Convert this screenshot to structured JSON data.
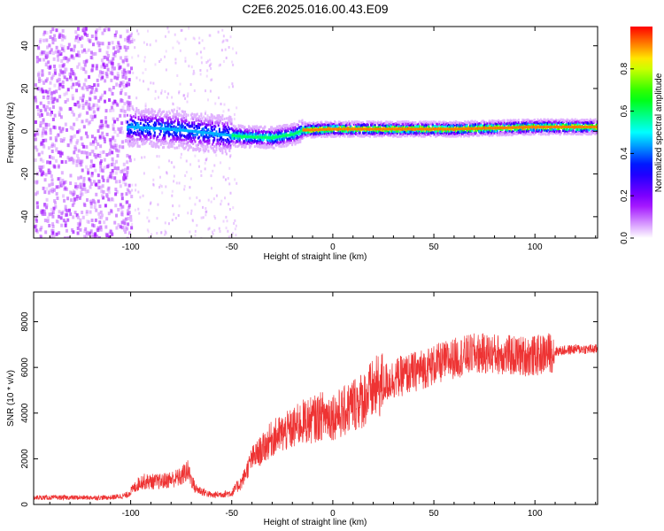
{
  "title": "C2E6.2025.016.00.43.E09",
  "chart_data": [
    {
      "type": "heatmap",
      "xlabel": "Height of straight line (km)",
      "ylabel": "Frequency (Hz)",
      "xlim": [
        -148,
        131
      ],
      "ylim": [
        -50,
        49
      ],
      "xticks": [
        -100,
        -50,
        0,
        50,
        100
      ],
      "yticks": [
        -40,
        -20,
        0,
        20,
        40
      ],
      "colorbar": {
        "label": "Normalized spectral amplitude",
        "range": [
          0,
          1
        ],
        "ticks": [
          0.0,
          0.2,
          0.4,
          0.6,
          0.8
        ],
        "colors": [
          "#ffffff",
          "#9b00ff",
          "#0000ff",
          "#00ffff",
          "#00ff00",
          "#ffff00",
          "#ff0000"
        ]
      },
      "ridge": {
        "points": [
          [
            -148,
            0
          ],
          [
            -100,
            2
          ],
          [
            -80,
            1
          ],
          [
            -60,
            -1
          ],
          [
            -45,
            -2.5
          ],
          [
            -30,
            -3
          ],
          [
            -20,
            -1.5
          ],
          [
            -15,
            0.5
          ],
          [
            0,
            1
          ],
          [
            20,
            1
          ],
          [
            40,
            1
          ],
          [
            60,
            1
          ],
          [
            80,
            1.5
          ],
          [
            100,
            2
          ],
          [
            131,
            2
          ]
        ]
      }
    },
    {
      "type": "line",
      "xlabel": "Height of straight line (km)",
      "ylabel": "SNR (10 * v/v)",
      "xlim": [
        -148,
        131
      ],
      "ylim": [
        0,
        9300
      ],
      "xticks": [
        -100,
        -50,
        0,
        50,
        100
      ],
      "yticks": [
        0,
        2000,
        4000,
        6000,
        8000
      ],
      "line_color": "#ee3333",
      "envelope": [
        [
          -148,
          300
        ],
        [
          -110,
          300
        ],
        [
          -102,
          400
        ],
        [
          -95,
          1000
        ],
        [
          -85,
          1000
        ],
        [
          -75,
          1200
        ],
        [
          -72,
          1500
        ],
        [
          -68,
          700
        ],
        [
          -60,
          400
        ],
        [
          -50,
          500
        ],
        [
          -45,
          1000
        ],
        [
          -40,
          2000
        ],
        [
          -35,
          2400
        ],
        [
          -30,
          2900
        ],
        [
          -25,
          3100
        ],
        [
          -20,
          3300
        ],
        [
          -15,
          3600
        ],
        [
          -10,
          3700
        ],
        [
          -5,
          3900
        ],
        [
          0,
          3900
        ],
        [
          5,
          4000
        ],
        [
          10,
          4400
        ],
        [
          15,
          4600
        ],
        [
          20,
          5000
        ],
        [
          25,
          5300
        ],
        [
          30,
          5500
        ],
        [
          40,
          5800
        ],
        [
          50,
          6100
        ],
        [
          60,
          6400
        ],
        [
          70,
          6600
        ],
        [
          80,
          6600
        ],
        [
          90,
          6500
        ],
        [
          100,
          6500
        ],
        [
          110,
          6700
        ],
        [
          120,
          6800
        ],
        [
          131,
          6800
        ]
      ]
    }
  ]
}
